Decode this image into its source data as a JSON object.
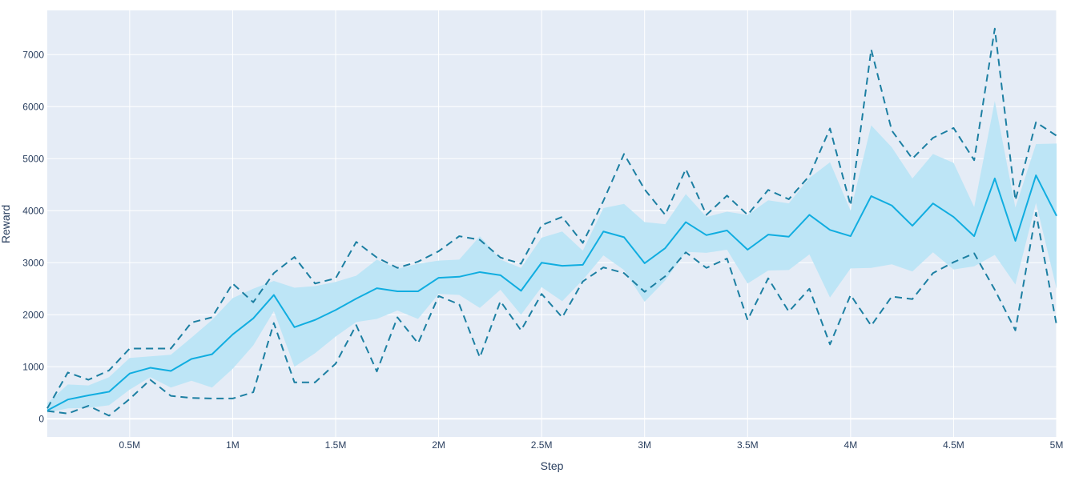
{
  "chart_data": {
    "type": "line",
    "xlabel": "Step",
    "ylabel": "Reward",
    "xlim": [
      100000,
      5000000
    ],
    "ylim": [
      -350,
      7850
    ],
    "x_ticks": [
      {
        "value": 500000,
        "label": "0.5M"
      },
      {
        "value": 1000000,
        "label": "1M"
      },
      {
        "value": 1500000,
        "label": "1.5M"
      },
      {
        "value": 2000000,
        "label": "2M"
      },
      {
        "value": 2500000,
        "label": "2.5M"
      },
      {
        "value": 3000000,
        "label": "3M"
      },
      {
        "value": 3500000,
        "label": "3.5M"
      },
      {
        "value": 4000000,
        "label": "4M"
      },
      {
        "value": 4500000,
        "label": "4.5M"
      },
      {
        "value": 5000000,
        "label": "5M"
      }
    ],
    "y_ticks": [
      {
        "value": 0,
        "label": "0"
      },
      {
        "value": 1000,
        "label": "1000"
      },
      {
        "value": 2000,
        "label": "2000"
      },
      {
        "value": 3000,
        "label": "3000"
      },
      {
        "value": 4000,
        "label": "4000"
      },
      {
        "value": 5000,
        "label": "5000"
      },
      {
        "value": 6000,
        "label": "6000"
      },
      {
        "value": 7000,
        "label": "7000"
      }
    ],
    "grid": true,
    "colors": {
      "plot_bg": "#e5ecf6",
      "grid": "#ffffff",
      "mean_line": "#10ade0",
      "band_fill": "#bde5f6",
      "minmax_line": "#1c7fa2"
    },
    "x": [
      100000,
      200000,
      300000,
      400000,
      500000,
      600000,
      700000,
      800000,
      900000,
      1000000,
      1100000,
      1200000,
      1300000,
      1400000,
      1500000,
      1600000,
      1700000,
      1800000,
      1900000,
      2000000,
      2100000,
      2200000,
      2300000,
      2400000,
      2500000,
      2600000,
      2700000,
      2800000,
      2900000,
      3000000,
      3100000,
      3200000,
      3300000,
      3400000,
      3500000,
      3600000,
      3700000,
      3800000,
      3900000,
      4000000,
      4100000,
      4200000,
      4300000,
      4400000,
      4500000,
      4600000,
      4700000,
      4800000,
      4900000,
      5000000
    ],
    "series": [
      {
        "role": "mean",
        "values": [
          160,
          370,
          450,
          520,
          870,
          980,
          920,
          1150,
          1240,
          1620,
          1930,
          2380,
          1760,
          1900,
          2090,
          2310,
          2510,
          2450,
          2450,
          2710,
          2730,
          2820,
          2760,
          2460,
          3000,
          2940,
          2960,
          3600,
          3490,
          2990,
          3280,
          3780,
          3530,
          3620,
          3250,
          3540,
          3500,
          3920,
          3630,
          3510,
          4280,
          4100,
          3710,
          4140,
          3880,
          3510,
          4620,
          3420,
          4680,
          3900
        ]
      },
      {
        "role": "band_upper",
        "values": [
          300,
          660,
          640,
          800,
          1170,
          1200,
          1230,
          1560,
          1900,
          2320,
          2500,
          2650,
          2520,
          2550,
          2630,
          2750,
          3060,
          2880,
          2980,
          3040,
          3060,
          3510,
          3060,
          2900,
          3480,
          3600,
          3230,
          4050,
          4130,
          3780,
          3740,
          4320,
          3880,
          3980,
          3920,
          4200,
          4140,
          4630,
          4930,
          4000,
          5640,
          5220,
          4620,
          5090,
          4920,
          4070,
          6110,
          4060,
          5280,
          5290
        ]
      },
      {
        "role": "band_lower",
        "values": [
          120,
          200,
          210,
          260,
          560,
          800,
          600,
          730,
          600,
          960,
          1410,
          2070,
          1000,
          1260,
          1580,
          1860,
          1920,
          2080,
          1920,
          2400,
          2380,
          2130,
          2480,
          2000,
          2530,
          2260,
          2670,
          3140,
          2860,
          2250,
          2660,
          3210,
          3190,
          3250,
          2600,
          2850,
          2860,
          3160,
          2330,
          2890,
          2900,
          2970,
          2830,
          3200,
          2870,
          2930,
          3150,
          2580,
          4150,
          2500
        ]
      },
      {
        "role": "max",
        "values": [
          200,
          890,
          750,
          930,
          1350,
          1350,
          1350,
          1850,
          1950,
          2600,
          2240,
          2800,
          3110,
          2600,
          2700,
          3400,
          3100,
          2900,
          3020,
          3220,
          3510,
          3440,
          3100,
          2980,
          3720,
          3880,
          3380,
          4190,
          5090,
          4410,
          3920,
          4800,
          3920,
          4290,
          3920,
          4400,
          4220,
          4670,
          5580,
          4100,
          7100,
          5540,
          5000,
          5400,
          5590,
          4970,
          7500,
          4200,
          5700,
          5440
        ]
      },
      {
        "role": "min",
        "values": [
          150,
          100,
          250,
          60,
          380,
          750,
          440,
          400,
          390,
          390,
          510,
          1840,
          700,
          700,
          1060,
          1800,
          910,
          1950,
          1450,
          2360,
          2200,
          1180,
          2260,
          1700,
          2400,
          1950,
          2640,
          2910,
          2800,
          2440,
          2740,
          3200,
          2900,
          3080,
          1900,
          2700,
          2060,
          2500,
          1430,
          2380,
          1790,
          2350,
          2300,
          2800,
          3010,
          3180,
          2480,
          1700,
          3960,
          1800
        ]
      }
    ]
  }
}
